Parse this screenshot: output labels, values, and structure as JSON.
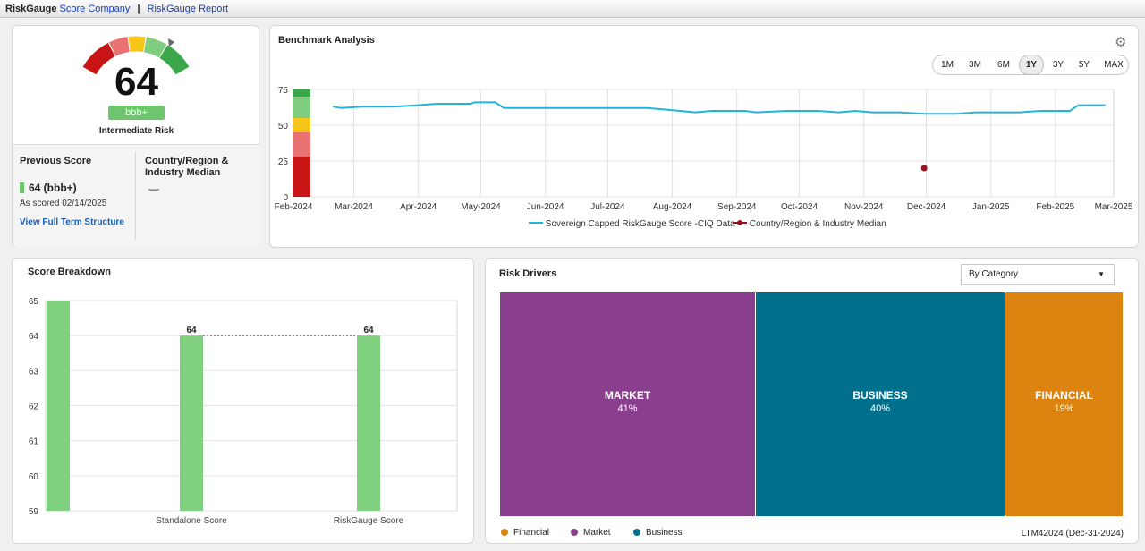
{
  "topbar": {
    "brand": "RiskGauge",
    "link1": "Score Company",
    "separator": "|",
    "link2": "RiskGauge Report"
  },
  "score": {
    "value": "64",
    "grade": "bbb+",
    "risk_label": "Intermediate Risk",
    "previous_title": "Previous Score",
    "previous_value": "64 (bbb+)",
    "previous_date": "As scored 02/14/2025",
    "full_term_link": "View Full Term Structure",
    "median_title": "Country/Region & Industry Median",
    "median_value": "—",
    "gauge_level": 64
  },
  "benchmark": {
    "title": "Benchmark Analysis",
    "settings_icon": "gear-icon",
    "periods": [
      "1M",
      "3M",
      "6M",
      "1Y",
      "3Y",
      "5Y",
      "MAX"
    ],
    "active_period": "1Y",
    "legend_series1": "Sovereign Capped RiskGauge Score -CIQ Data",
    "legend_series2": "Country/Region & Industry Median"
  },
  "chart_data": [
    {
      "type": "line",
      "x_ticks": [
        "Feb-2024",
        "Mar-2024",
        "Apr-2024",
        "May-2024",
        "Jun-2024",
        "Jul-2024",
        "Aug-2024",
        "Sep-2024",
        "Oct-2024",
        "Nov-2024",
        "Dec-2024",
        "Jan-2025",
        "Feb-2025",
        "Mar-2025"
      ],
      "y_ticks": [
        0,
        25,
        50,
        75
      ],
      "ylim": [
        0,
        75
      ],
      "series": [
        {
          "name": "Sovereign Capped RiskGauge Score -CIQ Data",
          "color": "#22b5dc",
          "points": [
            [
              "2024-02-20",
              63
            ],
            [
              "2024-02-24",
              62
            ],
            [
              "2024-03-05",
              63
            ],
            [
              "2024-03-20",
              63
            ],
            [
              "2024-04-01",
              64
            ],
            [
              "2024-04-10",
              65
            ],
            [
              "2024-04-26",
              65
            ],
            [
              "2024-04-28",
              66
            ],
            [
              "2024-05-08",
              66
            ],
            [
              "2024-05-12",
              62
            ],
            [
              "2024-06-10",
              62
            ],
            [
              "2024-07-20",
              62
            ],
            [
              "2024-07-28",
              61
            ],
            [
              "2024-08-05",
              60
            ],
            [
              "2024-08-12",
              59
            ],
            [
              "2024-08-20",
              60
            ],
            [
              "2024-09-05",
              60
            ],
            [
              "2024-09-10",
              59
            ],
            [
              "2024-09-25",
              60
            ],
            [
              "2024-10-10",
              60
            ],
            [
              "2024-10-20",
              59
            ],
            [
              "2024-10-28",
              60
            ],
            [
              "2024-11-05",
              59
            ],
            [
              "2024-11-18",
              59
            ],
            [
              "2024-11-30",
              58
            ],
            [
              "2024-12-15",
              58
            ],
            [
              "2024-12-25",
              59
            ],
            [
              "2025-01-15",
              59
            ],
            [
              "2025-01-25",
              60
            ],
            [
              "2025-02-08",
              60
            ],
            [
              "2025-02-12",
              64
            ],
            [
              "2025-02-25",
              64
            ]
          ]
        },
        {
          "name": "Country/Region & Industry Median",
          "color": "#9b1020",
          "points": [
            [
              "2024-11-30",
              20
            ]
          ]
        }
      ],
      "risk_bands": [
        {
          "from": 0,
          "to": 28,
          "color": "#c81414"
        },
        {
          "from": 28,
          "to": 45,
          "color": "#e97373"
        },
        {
          "from": 45,
          "to": 55,
          "color": "#f5c518"
        },
        {
          "from": 55,
          "to": 70,
          "color": "#7fcd7f"
        },
        {
          "from": 70,
          "to": 75,
          "color": "#3aa84a"
        }
      ]
    },
    {
      "type": "bar",
      "title": "Score Breakdown",
      "categories": [
        "",
        "Standalone Score",
        "RiskGauge Score"
      ],
      "values": [
        65,
        64,
        64
      ],
      "data_labels": [
        "",
        "64",
        "64"
      ],
      "y_ticks": [
        59,
        60,
        61,
        62,
        63,
        64,
        65
      ],
      "ylim": [
        59,
        65
      ],
      "color": "#7fd07f"
    },
    {
      "type": "treemap",
      "title": "Risk Drivers",
      "segments": [
        {
          "name": "MARKET",
          "value": 41,
          "label": "41%",
          "color": "#8a3e8e"
        },
        {
          "name": "BUSINESS",
          "value": 40,
          "label": "40%",
          "color": "#00708c"
        },
        {
          "name": "FINANCIAL",
          "value": 19,
          "label": "19%",
          "color": "#dd8410"
        }
      ]
    }
  ],
  "breakdown": {
    "title": "Score Breakdown"
  },
  "drivers": {
    "title": "Risk Drivers",
    "dropdown_value": "By Category",
    "legend": [
      {
        "label": "Financial",
        "color": "#dd8410"
      },
      {
        "label": "Market",
        "color": "#8a3e8e"
      },
      {
        "label": "Business",
        "color": "#00708c"
      }
    ],
    "period_label": "LTM42024 (Dec-31-2024)"
  }
}
